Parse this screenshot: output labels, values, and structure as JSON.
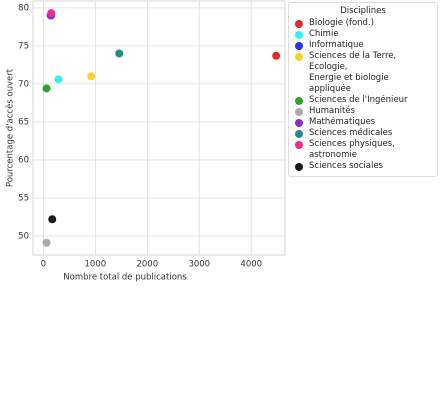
{
  "chart_data": {
    "type": "scatter",
    "x_label": "Nombre total de publications",
    "y_label": "Pourcentage d'accès ouvert",
    "legend_title": "Disciplines",
    "xlim": [
      -200,
      4650
    ],
    "xticks": [
      0,
      1000,
      2000,
      3000,
      4000
    ],
    "ylim": [
      47.5,
      80.9
    ],
    "yticks": [
      50,
      55,
      60,
      65,
      70,
      75,
      80
    ],
    "grid": true,
    "legend_position": "outside-right",
    "series": [
      {
        "name": "Biologie (fond.)",
        "color": "#e8282b",
        "x": [
          4480
        ],
        "values": [
          73.7
        ]
      },
      {
        "name": "Chimie",
        "color": "#2ef3f5",
        "x": [
          290
        ],
        "values": [
          70.6
        ]
      },
      {
        "name": "Informatique",
        "color": "#2a2ff0",
        "x": [
          140
        ],
        "values": [
          79.0
        ]
      },
      {
        "name": "Sciences de la Terre, Ecologie,\nEnergie et biologie appliquée",
        "color": "#f8d32c",
        "x": [
          920
        ],
        "values": [
          71.0
        ]
      },
      {
        "name": "Sciences de l'Ingénieur",
        "color": "#2aa12a",
        "x": [
          60
        ],
        "values": [
          69.4
        ]
      },
      {
        "name": "Humanités",
        "color": "#a9a9a9",
        "x": [
          60
        ],
        "values": [
          49.1
        ]
      },
      {
        "name": "Mathématiques",
        "color": "#8e2bc9",
        "x": [
          150
        ],
        "values": [
          79.0
        ]
      },
      {
        "name": "Sciences médicales",
        "color": "#1f8b8b",
        "x": [
          1460
        ],
        "values": [
          74.0
        ]
      },
      {
        "name": "Sciences physiques, astronomie",
        "color": "#f02a8c",
        "x": [
          150
        ],
        "values": [
          79.3
        ]
      },
      {
        "name": "Sciences sociales",
        "color": "#1a1a1a",
        "x": [
          170
        ],
        "values": [
          52.2
        ]
      }
    ]
  }
}
